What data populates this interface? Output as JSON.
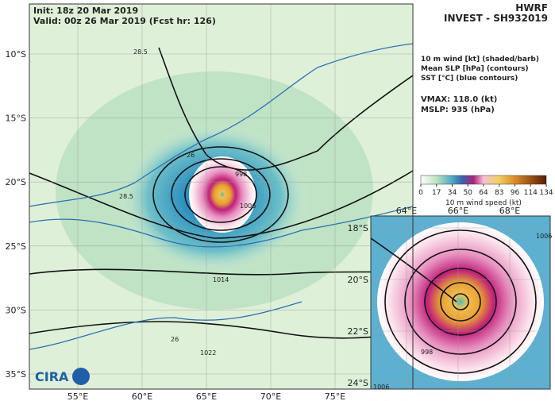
{
  "header": {
    "init": "Init:  18z 20 Mar 2019",
    "valid": "Valid: 00z 26 Mar 2019 (Fcst hr: 126)",
    "model": "HWRF",
    "storm": "INVEST - SH932019"
  },
  "legend": {
    "lines": [
      "10 m wind [kt] (shaded/barb)",
      "Mean SLP [hPa] (contours)",
      "SST [°C] (blue contours)"
    ],
    "vmax": "VMAX: 118.0 (kt)",
    "mslp": "MSLP:  935 (hPa)"
  },
  "colorbar": {
    "ticks": [
      0,
      17,
      34,
      50,
      64,
      83,
      96,
      114,
      134
    ],
    "label": "10 m wind speed (kt)"
  },
  "main_map": {
    "lat_labels": [
      "10°S",
      "15°S",
      "20°S",
      "25°S",
      "30°S",
      "35°S"
    ],
    "lon_labels": [
      "55°E",
      "60°E",
      "65°E",
      "70°E",
      "75°E"
    ],
    "contour_labels": [
      "28.5",
      "26",
      "28.5",
      "998",
      "1006",
      "1014",
      "1022",
      "26"
    ]
  },
  "inset_map": {
    "lat_labels": [
      "18°S",
      "20°S",
      "22°S",
      "24°S"
    ],
    "lon_labels": [
      "64°E",
      "66°E",
      "68°E"
    ],
    "contour_labels": [
      "1006",
      "1006",
      "998"
    ]
  }
}
